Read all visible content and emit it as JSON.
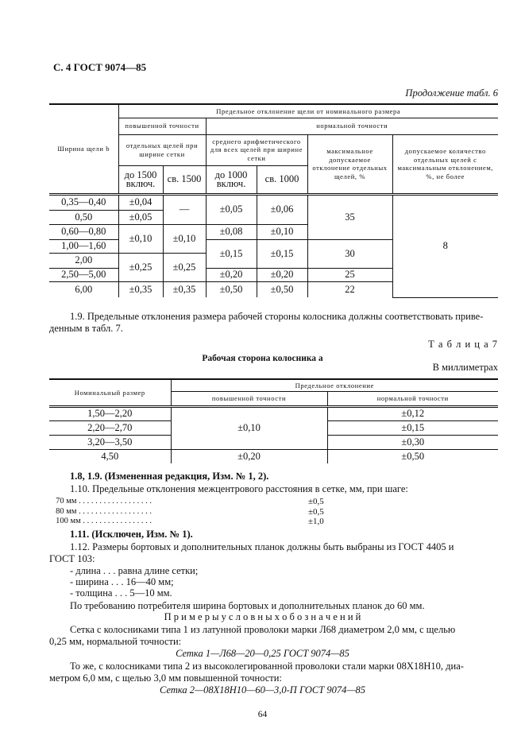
{
  "header": {
    "running_title": "С. 4 ГОСТ 9074—85",
    "continuation": "Продолжение табл. 6"
  },
  "table6": {
    "head": {
      "width_col": "Ширина щели b",
      "group": "Предельное отклонение щели от номинального размера",
      "increased": "повышенной точности",
      "normal": "нормальной точности",
      "individual": "отдельных щелей при ширине сетки",
      "mean": "среднего арифметического для всех щелей при ширине сетки",
      "max_dev": "максимальное допускаемое отклонение отдельных щелей, %",
      "allowed_count": "допускаемое количество отдельных щелей с максимальным отклонением, %, не более",
      "upto1500": "до 1500 включ.",
      "over1500": "св. 1500",
      "upto1000": "до 1000 включ.",
      "over1000": "св. 1000"
    },
    "widths": [
      "0,35—0,40",
      "0,50",
      "0,60—0,80",
      "1,00—1,60",
      "2,00",
      "2,50—5,00",
      "6,00"
    ],
    "c_upto1500": [
      "±0,04",
      "±0,05",
      "±0,10",
      "±0,25",
      "±0,35"
    ],
    "c_over1500": [
      "—",
      "±0,10",
      "±0,25",
      "±0,35"
    ],
    "c_upto1000": [
      "±0,05",
      "±0,08",
      "±0,15",
      "±0,20",
      "±0,50"
    ],
    "c_over1000": [
      "±0,06",
      "±0,10",
      "±0,15",
      "±0,20",
      "±0,50"
    ],
    "c_max": [
      "35",
      "30",
      "25",
      "22"
    ],
    "c_count": "8"
  },
  "p19": {
    "line1": "1.9. Предельные отклонения размера рабочей стороны колосника должны соответствовать приве-",
    "line2": "денным в табл. 7."
  },
  "table7": {
    "label": "Т а б л и ц а  7",
    "title": "Рабочая сторона колосника a",
    "units": "В миллиметрах",
    "head": {
      "nominal": "Номинальный размер",
      "group": "Предельное отклонение",
      "increased": "повышенной точности",
      "normal": "нормальной точности"
    },
    "sizes": [
      "1,50—2,20",
      "2,20—2,70",
      "3,20—3,50",
      "4,50"
    ],
    "increased": [
      "±0,10",
      "±0,20"
    ],
    "normal": [
      "±0,12",
      "±0,15",
      "±0,30",
      "±0,50"
    ]
  },
  "text": {
    "p18": "1.8, 1.9. (Измененная редакция, Изм. № 1, 2).",
    "p110": "1.10. Предельные отклонения межцентрового расстояния в сетке, мм, при шаге:",
    "steps": [
      {
        "step": "70 мм . . . . . . . . . . . . . . . . . .",
        "value": "±0,5"
      },
      {
        "step": "80 мм . . . . . . . . . . . . . . . . . .",
        "value": "±0,5"
      },
      {
        "step": "100 мм . . . . . . . . . . . . . . . . .",
        "value": "±1,0"
      }
    ],
    "p111": "1.11. (Исключен, Изм. № 1).",
    "p112a": "1.12. Размеры  бортовых  и  дополнительных  планок должны быть выбраны из ГОСТ 4405 и",
    "p112b": "ГОСТ 103:",
    "d1": "- длина . . . равна длине сетки;",
    "d2": "- ширина . . . 16—40 мм;",
    "d3": "- толщина . . . 5—10 мм.",
    "p_req": "По требованию потребителя ширина бортовых и дополнительных планок до 60 мм.",
    "examples_title": "П р и м е р ы   у с л о в н ы х   о б о з н а ч е н и й",
    "ex1a": "Сетка  с колосниками  типа 1  из латунной проволоки марки Л68 диаметром 2,0 мм, с щелью",
    "ex1b": "0,25 мм, нормальной точности:",
    "ex1c": "Сетка 1—Л68—20—0,25 ГОСТ 9074—85",
    "ex2a": "То же, с колосниками типа 2 из высоколегированной проволоки стали марки 08Х18Н10, диа-",
    "ex2b": "метром 6,0 мм, с щелью 3,0 мм повышенной точности:",
    "ex2c": "Сетка 2—08Х18Н10—60—3,0-П ГОСТ 9074—85"
  },
  "footer": {
    "page_number": "64"
  }
}
